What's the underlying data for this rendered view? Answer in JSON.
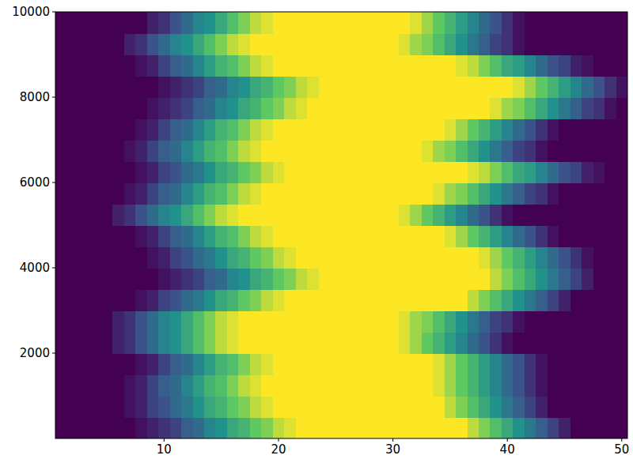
{
  "chart_data": {
    "type": "heatmap",
    "x": [
      1,
      2,
      3,
      4,
      5,
      6,
      7,
      8,
      9,
      10,
      11,
      12,
      13,
      14,
      15,
      16,
      17,
      18,
      19,
      20,
      21,
      22,
      23,
      24,
      25,
      26,
      27,
      28,
      29,
      30,
      31,
      32,
      33,
      34,
      35,
      36,
      37,
      38,
      39,
      40,
      41,
      42,
      43,
      44,
      45,
      46,
      47,
      48,
      49,
      50
    ],
    "y_edges": [
      0.5,
      500.5,
      1000.5,
      1500.5,
      2000.5,
      2500.5,
      3000.5,
      3500.5,
      4000.5,
      4500.5,
      5000.5,
      5500.5,
      6000.5,
      6500.5,
      7000.5,
      7500.5,
      8000.5,
      8500.5,
      9000.5,
      9500.5,
      10000.5
    ],
    "xlim": [
      0.5,
      50.5
    ],
    "ylim": [
      0.5,
      10000.5
    ],
    "xticks": [
      10,
      20,
      30,
      40,
      50
    ],
    "yticks": [
      2000,
      4000,
      6000,
      8000,
      10000
    ],
    "zlim": [
      0,
      1
    ],
    "values": [
      [
        0,
        0,
        0,
        0,
        0,
        0,
        0,
        0.05,
        0.1,
        0.15,
        0.2,
        0.3,
        0.35,
        0.45,
        0.5,
        0.6,
        0.65,
        0.75,
        0.8,
        0.9,
        0.95,
        1,
        1,
        1,
        1,
        1,
        1,
        1,
        1,
        1,
        1,
        1,
        1,
        1,
        1,
        1,
        0.9,
        0.8,
        0.7,
        0.6,
        0.5,
        0.4,
        0.3,
        0.2,
        0.1,
        0,
        0,
        0,
        0,
        0
      ],
      [
        0,
        0,
        0,
        0,
        0,
        0,
        0.05,
        0.1,
        0.2,
        0.25,
        0.35,
        0.4,
        0.5,
        0.6,
        0.65,
        0.75,
        0.8,
        0.9,
        0.95,
        1,
        1,
        1,
        1,
        1,
        1,
        1,
        1,
        1,
        1,
        1,
        1,
        1,
        1,
        1,
        0.9,
        0.8,
        0.7,
        0.6,
        0.5,
        0.4,
        0.3,
        0.2,
        0.1,
        0,
        0,
        0,
        0,
        0,
        0,
        0
      ],
      [
        0,
        0,
        0,
        0,
        0,
        0,
        0.05,
        0.1,
        0.2,
        0.3,
        0.35,
        0.45,
        0.55,
        0.65,
        0.7,
        0.8,
        0.9,
        0.95,
        1,
        1,
        1,
        1,
        1,
        1,
        1,
        1,
        1,
        1,
        1,
        1,
        1,
        1,
        1,
        0.95,
        0.85,
        0.75,
        0.65,
        0.55,
        0.45,
        0.35,
        0.25,
        0.15,
        0.05,
        0,
        0,
        0,
        0,
        0,
        0,
        0
      ],
      [
        0,
        0,
        0,
        0,
        0,
        0,
        0,
        0.05,
        0.1,
        0.2,
        0.3,
        0.35,
        0.45,
        0.55,
        0.65,
        0.7,
        0.8,
        0.9,
        0.95,
        1,
        1,
        1,
        1,
        1,
        1,
        1,
        1,
        1,
        1,
        1,
        1,
        1,
        1,
        0.95,
        0.85,
        0.75,
        0.65,
        0.55,
        0.45,
        0.35,
        0.25,
        0.15,
        0.05,
        0,
        0,
        0,
        0,
        0,
        0,
        0
      ],
      [
        0,
        0,
        0,
        0,
        0,
        0.1,
        0.15,
        0.25,
        0.35,
        0.45,
        0.5,
        0.6,
        0.7,
        0.8,
        0.9,
        0.95,
        1,
        1,
        1,
        1,
        1,
        1,
        1,
        1,
        1,
        1,
        1,
        1,
        1,
        1,
        0.95,
        0.85,
        0.75,
        0.65,
        0.55,
        0.45,
        0.35,
        0.25,
        0.15,
        0.05,
        0,
        0,
        0,
        0,
        0,
        0,
        0,
        0,
        0,
        0
      ],
      [
        0,
        0,
        0,
        0,
        0,
        0.1,
        0.15,
        0.25,
        0.35,
        0.45,
        0.5,
        0.6,
        0.7,
        0.8,
        0.9,
        0.95,
        1,
        1,
        1,
        1,
        1,
        1,
        1,
        1,
        1,
        1,
        1,
        1,
        1,
        1,
        0.95,
        0.85,
        0.8,
        0.7,
        0.6,
        0.5,
        0.4,
        0.3,
        0.2,
        0.15,
        0.05,
        0,
        0,
        0,
        0,
        0,
        0,
        0,
        0,
        0
      ],
      [
        0,
        0,
        0,
        0,
        0,
        0,
        0,
        0.05,
        0.1,
        0.2,
        0.25,
        0.35,
        0.4,
        0.5,
        0.6,
        0.65,
        0.75,
        0.8,
        0.9,
        0.95,
        1,
        1,
        1,
        1,
        1,
        1,
        1,
        1,
        1,
        1,
        1,
        1,
        1,
        1,
        1,
        1,
        0.9,
        0.8,
        0.7,
        0.6,
        0.5,
        0.4,
        0.3,
        0.2,
        0.1,
        0,
        0,
        0,
        0,
        0
      ],
      [
        0,
        0,
        0,
        0,
        0,
        0,
        0,
        0,
        0,
        0.05,
        0.1,
        0.15,
        0.2,
        0.3,
        0.35,
        0.45,
        0.5,
        0.6,
        0.65,
        0.75,
        0.8,
        0.9,
        0.95,
        1,
        1,
        1,
        1,
        1,
        1,
        1,
        1,
        1,
        1,
        1,
        1,
        1,
        1,
        1,
        0.9,
        0.8,
        0.7,
        0.6,
        0.5,
        0.4,
        0.3,
        0.2,
        0.1,
        0,
        0,
        0
      ],
      [
        0,
        0,
        0,
        0,
        0,
        0,
        0,
        0,
        0.05,
        0.1,
        0.2,
        0.25,
        0.35,
        0.4,
        0.5,
        0.6,
        0.65,
        0.75,
        0.8,
        0.9,
        0.95,
        1,
        1,
        1,
        1,
        1,
        1,
        1,
        1,
        1,
        1,
        1,
        1,
        1,
        1,
        1,
        1,
        0.95,
        0.85,
        0.75,
        0.65,
        0.55,
        0.45,
        0.35,
        0.25,
        0.15,
        0.05,
        0,
        0,
        0
      ],
      [
        0,
        0,
        0,
        0,
        0,
        0,
        0,
        0.05,
        0.1,
        0.2,
        0.3,
        0.35,
        0.45,
        0.55,
        0.65,
        0.7,
        0.8,
        0.9,
        0.95,
        1,
        1,
        1,
        1,
        1,
        1,
        1,
        1,
        1,
        1,
        1,
        1,
        1,
        1,
        1,
        0.95,
        0.85,
        0.75,
        0.65,
        0.55,
        0.45,
        0.35,
        0.25,
        0.15,
        0.05,
        0,
        0,
        0,
        0,
        0,
        0
      ],
      [
        0,
        0,
        0,
        0,
        0,
        0.1,
        0.15,
        0.25,
        0.35,
        0.45,
        0.5,
        0.6,
        0.7,
        0.8,
        0.9,
        0.95,
        1,
        1,
        1,
        1,
        1,
        1,
        1,
        1,
        1,
        1,
        1,
        1,
        1,
        1,
        0.95,
        0.85,
        0.75,
        0.65,
        0.55,
        0.45,
        0.35,
        0.25,
        0.15,
        0.05,
        0,
        0,
        0,
        0,
        0,
        0,
        0,
        0,
        0,
        0
      ],
      [
        0,
        0,
        0,
        0,
        0,
        0,
        0.05,
        0.1,
        0.2,
        0.3,
        0.35,
        0.45,
        0.55,
        0.65,
        0.7,
        0.8,
        0.9,
        0.95,
        1,
        1,
        1,
        1,
        1,
        1,
        1,
        1,
        1,
        1,
        1,
        1,
        1,
        1,
        1,
        0.95,
        0.85,
        0.8,
        0.7,
        0.6,
        0.5,
        0.4,
        0.3,
        0.2,
        0.15,
        0.05,
        0,
        0,
        0,
        0,
        0,
        0
      ],
      [
        0,
        0,
        0,
        0,
        0,
        0,
        0,
        0.05,
        0.1,
        0.2,
        0.25,
        0.35,
        0.4,
        0.5,
        0.6,
        0.65,
        0.75,
        0.8,
        0.9,
        0.95,
        1,
        1,
        1,
        1,
        1,
        1,
        1,
        1,
        1,
        1,
        1,
        1,
        1,
        1,
        1,
        1,
        0.95,
        0.9,
        0.8,
        0.7,
        0.6,
        0.55,
        0.45,
        0.35,
        0.25,
        0.2,
        0.1,
        0.05,
        0,
        0
      ],
      [
        0,
        0,
        0,
        0,
        0,
        0,
        0.05,
        0.1,
        0.2,
        0.3,
        0.35,
        0.45,
        0.55,
        0.65,
        0.7,
        0.8,
        0.9,
        0.95,
        1,
        1,
        1,
        1,
        1,
        1,
        1,
        1,
        1,
        1,
        1,
        1,
        1,
        1,
        0.95,
        0.85,
        0.8,
        0.7,
        0.6,
        0.5,
        0.4,
        0.3,
        0.2,
        0.15,
        0.05,
        0,
        0,
        0,
        0,
        0,
        0,
        0
      ],
      [
        0,
        0,
        0,
        0,
        0,
        0,
        0,
        0.05,
        0.1,
        0.2,
        0.3,
        0.35,
        0.45,
        0.55,
        0.65,
        0.7,
        0.8,
        0.9,
        0.95,
        1,
        1,
        1,
        1,
        1,
        1,
        1,
        1,
        1,
        1,
        1,
        1,
        1,
        1,
        1,
        0.95,
        0.85,
        0.75,
        0.65,
        0.55,
        0.45,
        0.35,
        0.25,
        0.15,
        0.05,
        0,
        0,
        0,
        0,
        0,
        0
      ],
      [
        0,
        0,
        0,
        0,
        0,
        0,
        0,
        0,
        0.05,
        0.1,
        0.15,
        0.2,
        0.3,
        0.35,
        0.45,
        0.5,
        0.6,
        0.65,
        0.75,
        0.8,
        0.9,
        0.95,
        1,
        1,
        1,
        1,
        1,
        1,
        1,
        1,
        1,
        1,
        1,
        1,
        1,
        1,
        1,
        1,
        0.95,
        0.85,
        0.8,
        0.7,
        0.6,
        0.5,
        0.4,
        0.3,
        0.2,
        0.15,
        0.05,
        0
      ],
      [
        0,
        0,
        0,
        0,
        0,
        0,
        0,
        0,
        0,
        0.05,
        0.1,
        0.15,
        0.2,
        0.3,
        0.35,
        0.45,
        0.5,
        0.6,
        0.65,
        0.75,
        0.8,
        0.9,
        0.95,
        1,
        1,
        1,
        1,
        1,
        1,
        1,
        1,
        1,
        1,
        1,
        1,
        1,
        1,
        1,
        1,
        1,
        0.95,
        0.85,
        0.75,
        0.65,
        0.55,
        0.45,
        0.35,
        0.25,
        0.15,
        0.05
      ],
      [
        0,
        0,
        0,
        0,
        0,
        0,
        0,
        0.05,
        0.1,
        0.2,
        0.3,
        0.35,
        0.45,
        0.55,
        0.65,
        0.7,
        0.8,
        0.9,
        0.95,
        1,
        1,
        1,
        1,
        1,
        1,
        1,
        1,
        1,
        1,
        1,
        1,
        1,
        1,
        1,
        1,
        0.95,
        0.9,
        0.8,
        0.7,
        0.6,
        0.55,
        0.45,
        0.35,
        0.25,
        0.2,
        0.1,
        0.05,
        0,
        0,
        0
      ],
      [
        0,
        0,
        0,
        0,
        0,
        0,
        0.1,
        0.15,
        0.25,
        0.35,
        0.45,
        0.5,
        0.6,
        0.7,
        0.8,
        0.9,
        0.95,
        1,
        1,
        1,
        1,
        1,
        1,
        1,
        1,
        1,
        1,
        1,
        1,
        1,
        0.95,
        0.85,
        0.8,
        0.7,
        0.6,
        0.5,
        0.4,
        0.3,
        0.2,
        0.15,
        0.05,
        0,
        0,
        0,
        0,
        0,
        0,
        0,
        0,
        0
      ],
      [
        0,
        0,
        0,
        0,
        0,
        0,
        0,
        0,
        0.1,
        0.15,
        0.25,
        0.35,
        0.45,
        0.5,
        0.6,
        0.7,
        0.8,
        0.9,
        0.95,
        1,
        1,
        1,
        1,
        1,
        1,
        1,
        1,
        1,
        1,
        1,
        1,
        0.95,
        0.85,
        0.75,
        0.65,
        0.55,
        0.45,
        0.35,
        0.25,
        0.15,
        0.05,
        0,
        0,
        0,
        0,
        0,
        0,
        0,
        0,
        0
      ]
    ]
  }
}
